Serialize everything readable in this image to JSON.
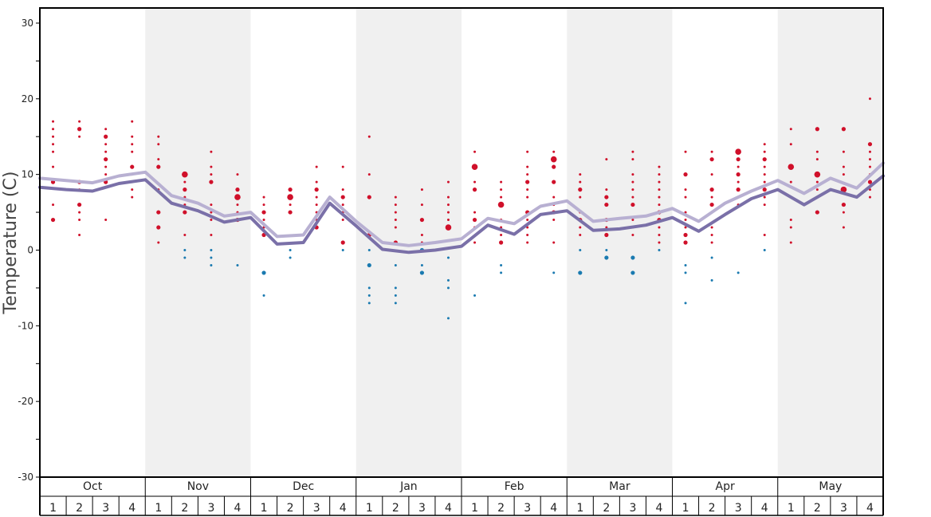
{
  "chart_data": {
    "type": "scatter",
    "ylabel": "Temperature (C)",
    "ylim": [
      -30,
      32
    ],
    "yticks": [
      -30,
      -20,
      -10,
      0,
      10,
      20,
      30
    ],
    "months": [
      "Oct",
      "Nov",
      "Dec",
      "Jan",
      "Feb",
      "Mar",
      "Apr",
      "May"
    ],
    "weeks": [
      "1",
      "2",
      "3",
      "4"
    ],
    "colors": {
      "warm_points": "#d0102a",
      "cold_points": "#1a7ab0",
      "line_upper": "#b8b0d2",
      "line_lower": "#7a70a8",
      "alt_band": "#f0f0f0"
    },
    "series": [
      {
        "values": [
          9.5,
          9.2,
          8.9,
          9.8,
          10.3,
          7.2,
          6.2,
          4.5,
          5.0,
          1.8,
          2.0,
          7.0,
          3.8,
          1.0,
          0.6,
          1.0,
          1.5,
          4.2,
          3.5,
          5.8,
          6.5,
          3.8,
          4.2,
          4.5,
          5.5,
          3.8,
          6.2,
          7.8,
          9.2,
          7.5,
          9.5,
          8.2,
          11.5
        ]
      },
      {
        "values": [
          8.3,
          8.0,
          7.8,
          8.8,
          9.3,
          6.2,
          5.2,
          3.7,
          4.3,
          0.8,
          1.0,
          6.2,
          3.2,
          0.1,
          -0.3,
          0.0,
          0.5,
          3.3,
          2.1,
          4.7,
          5.2,
          2.6,
          2.8,
          3.3,
          4.3,
          2.5,
          4.7,
          6.8,
          8.0,
          6.0,
          8.0,
          7.0,
          9.8
        ]
      }
    ],
    "points": [
      [
        0,
        17,
        1
      ],
      [
        0,
        16,
        1
      ],
      [
        0,
        15,
        1
      ],
      [
        0,
        14,
        1
      ],
      [
        0,
        13,
        1
      ],
      [
        0,
        11,
        1
      ],
      [
        0,
        9,
        2
      ],
      [
        0,
        6,
        1
      ],
      [
        0,
        4,
        2
      ],
      [
        1,
        17,
        1
      ],
      [
        1,
        16,
        2
      ],
      [
        1,
        15,
        1
      ],
      [
        1,
        9,
        2
      ],
      [
        1,
        8,
        1
      ],
      [
        1,
        6,
        2
      ],
      [
        1,
        5,
        1
      ],
      [
        1,
        4,
        1
      ],
      [
        1,
        2,
        1
      ],
      [
        2,
        16,
        1
      ],
      [
        2,
        15,
        2
      ],
      [
        2,
        14,
        1
      ],
      [
        2,
        13,
        1
      ],
      [
        2,
        12,
        2
      ],
      [
        2,
        11,
        1
      ],
      [
        2,
        10,
        1
      ],
      [
        2,
        9,
        2
      ],
      [
        2,
        4,
        1
      ],
      [
        3,
        17,
        1
      ],
      [
        3,
        15,
        1
      ],
      [
        3,
        14,
        1
      ],
      [
        3,
        13,
        1
      ],
      [
        3,
        11,
        2
      ],
      [
        3,
        10,
        1
      ],
      [
        3,
        9,
        1
      ],
      [
        3,
        8,
        1
      ],
      [
        3,
        7,
        1
      ],
      [
        4,
        15,
        1
      ],
      [
        4,
        14,
        1
      ],
      [
        4,
        12,
        1
      ],
      [
        4,
        11,
        2
      ],
      [
        4,
        8,
        1
      ],
      [
        4,
        5,
        2
      ],
      [
        4,
        3,
        2
      ],
      [
        4,
        1,
        1
      ],
      [
        5,
        10,
        3
      ],
      [
        5,
        9,
        1
      ],
      [
        5,
        8,
        2
      ],
      [
        5,
        7,
        1
      ],
      [
        5,
        6,
        1
      ],
      [
        5,
        5,
        2
      ],
      [
        5,
        2,
        1
      ],
      [
        5,
        0,
        1
      ],
      [
        5,
        -1,
        1
      ],
      [
        6,
        13,
        1
      ],
      [
        6,
        11,
        1
      ],
      [
        6,
        10,
        1
      ],
      [
        6,
        9,
        2
      ],
      [
        6,
        6,
        1
      ],
      [
        6,
        5,
        1
      ],
      [
        6,
        4,
        1
      ],
      [
        6,
        2,
        1
      ],
      [
        6,
        0,
        1
      ],
      [
        6,
        -1,
        1
      ],
      [
        6,
        -2,
        1
      ],
      [
        7,
        10,
        1
      ],
      [
        7,
        8,
        2
      ],
      [
        7,
        7,
        3
      ],
      [
        7,
        6,
        1
      ],
      [
        7,
        5,
        1
      ],
      [
        7,
        4,
        2
      ],
      [
        7,
        -2,
        1
      ],
      [
        8,
        7,
        1
      ],
      [
        8,
        6,
        1
      ],
      [
        8,
        5,
        2
      ],
      [
        8,
        4,
        1
      ],
      [
        8,
        3,
        1
      ],
      [
        8,
        2,
        2
      ],
      [
        8,
        -3,
        2
      ],
      [
        8,
        -6,
        1
      ],
      [
        9,
        8,
        2
      ],
      [
        9,
        7,
        3
      ],
      [
        9,
        6,
        1
      ],
      [
        9,
        5,
        2
      ],
      [
        9,
        0,
        1
      ],
      [
        9,
        -1,
        1
      ],
      [
        10,
        11,
        1
      ],
      [
        10,
        9,
        1
      ],
      [
        10,
        8,
        2
      ],
      [
        10,
        7,
        1
      ],
      [
        10,
        6,
        1
      ],
      [
        10,
        5,
        1
      ],
      [
        10,
        4,
        1
      ],
      [
        10,
        3,
        2
      ],
      [
        11,
        11,
        1
      ],
      [
        11,
        8,
        1
      ],
      [
        11,
        7,
        2
      ],
      [
        11,
        6,
        1
      ],
      [
        11,
        5,
        1
      ],
      [
        11,
        4,
        1
      ],
      [
        11,
        1,
        2
      ],
      [
        11,
        0,
        1
      ],
      [
        12,
        15,
        1
      ],
      [
        12,
        10,
        1
      ],
      [
        12,
        7,
        2
      ],
      [
        12,
        2,
        2
      ],
      [
        12,
        0,
        1
      ],
      [
        12,
        -2,
        2
      ],
      [
        12,
        -5,
        1
      ],
      [
        12,
        -6,
        1
      ],
      [
        12,
        -7,
        1
      ],
      [
        13,
        7,
        1
      ],
      [
        13,
        6,
        1
      ],
      [
        13,
        5,
        1
      ],
      [
        13,
        4,
        1
      ],
      [
        13,
        3,
        1
      ],
      [
        13,
        1,
        2
      ],
      [
        13,
        -2,
        1
      ],
      [
        13,
        -5,
        1
      ],
      [
        13,
        -6,
        1
      ],
      [
        13,
        -7,
        1
      ],
      [
        14,
        8,
        1
      ],
      [
        14,
        6,
        1
      ],
      [
        14,
        4,
        2
      ],
      [
        14,
        2,
        1
      ],
      [
        14,
        1,
        1
      ],
      [
        14,
        0,
        2
      ],
      [
        14,
        -2,
        1
      ],
      [
        14,
        -3,
        2
      ],
      [
        15,
        9,
        1
      ],
      [
        15,
        7,
        1
      ],
      [
        15,
        6,
        1
      ],
      [
        15,
        5,
        1
      ],
      [
        15,
        4,
        1
      ],
      [
        15,
        3,
        3
      ],
      [
        15,
        -1,
        1
      ],
      [
        15,
        -4,
        1
      ],
      [
        15,
        -5,
        1
      ],
      [
        15,
        -9,
        1
      ],
      [
        16,
        13,
        1
      ],
      [
        16,
        11,
        3
      ],
      [
        16,
        9,
        1
      ],
      [
        16,
        8,
        2
      ],
      [
        16,
        5,
        1
      ],
      [
        16,
        4,
        2
      ],
      [
        16,
        3,
        1
      ],
      [
        16,
        1,
        1
      ],
      [
        16,
        -6,
        1
      ],
      [
        17,
        9,
        1
      ],
      [
        17,
        8,
        1
      ],
      [
        17,
        7,
        1
      ],
      [
        17,
        6,
        3
      ],
      [
        17,
        4,
        1
      ],
      [
        17,
        3,
        1
      ],
      [
        17,
        2,
        1
      ],
      [
        17,
        1,
        2
      ],
      [
        17,
        -2,
        1
      ],
      [
        17,
        -3,
        1
      ],
      [
        18,
        13,
        1
      ],
      [
        18,
        11,
        1
      ],
      [
        18,
        10,
        1
      ],
      [
        18,
        9,
        2
      ],
      [
        18,
        8,
        1
      ],
      [
        18,
        7,
        1
      ],
      [
        18,
        5,
        2
      ],
      [
        18,
        4,
        1
      ],
      [
        18,
        3,
        1
      ],
      [
        18,
        2,
        1
      ],
      [
        18,
        1,
        1
      ],
      [
        19,
        13,
        1
      ],
      [
        19,
        12,
        3
      ],
      [
        19,
        11,
        2
      ],
      [
        19,
        9,
        2
      ],
      [
        19,
        7,
        1
      ],
      [
        19,
        6,
        1
      ],
      [
        19,
        5,
        2
      ],
      [
        19,
        4,
        1
      ],
      [
        19,
        1,
        1
      ],
      [
        19,
        -3,
        1
      ],
      [
        20,
        10,
        1
      ],
      [
        20,
        9,
        1
      ],
      [
        20,
        8,
        2
      ],
      [
        20,
        7,
        1
      ],
      [
        20,
        5,
        1
      ],
      [
        20,
        4,
        2
      ],
      [
        20,
        3,
        1
      ],
      [
        20,
        2,
        1
      ],
      [
        20,
        0,
        1
      ],
      [
        20,
        -3,
        2
      ],
      [
        21,
        12,
        1
      ],
      [
        21,
        8,
        1
      ],
      [
        21,
        7,
        2
      ],
      [
        21,
        6,
        2
      ],
      [
        21,
        4,
        2
      ],
      [
        21,
        3,
        1
      ],
      [
        21,
        2,
        2
      ],
      [
        21,
        0,
        1
      ],
      [
        21,
        -1,
        2
      ],
      [
        22,
        13,
        1
      ],
      [
        22,
        12,
        1
      ],
      [
        22,
        10,
        1
      ],
      [
        22,
        9,
        1
      ],
      [
        22,
        8,
        1
      ],
      [
        22,
        7,
        1
      ],
      [
        22,
        6,
        2
      ],
      [
        22,
        4,
        1
      ],
      [
        22,
        3,
        1
      ],
      [
        22,
        2,
        1
      ],
      [
        22,
        -1,
        2
      ],
      [
        22,
        -3,
        2
      ],
      [
        23,
        11,
        1
      ],
      [
        23,
        10,
        1
      ],
      [
        23,
        9,
        1
      ],
      [
        23,
        8,
        1
      ],
      [
        23,
        7,
        1
      ],
      [
        23,
        6,
        1
      ],
      [
        23,
        5,
        2
      ],
      [
        23,
        4,
        2
      ],
      [
        23,
        3,
        1
      ],
      [
        23,
        2,
        1
      ],
      [
        23,
        1,
        1
      ],
      [
        23,
        0,
        1
      ],
      [
        24,
        13,
        1
      ],
      [
        24,
        10,
        2
      ],
      [
        24,
        8,
        1
      ],
      [
        24,
        7,
        1
      ],
      [
        24,
        5,
        1
      ],
      [
        24,
        4,
        1
      ],
      [
        24,
        3,
        1
      ],
      [
        24,
        2,
        2
      ],
      [
        24,
        1,
        2
      ],
      [
        24,
        -2,
        1
      ],
      [
        24,
        -3,
        1
      ],
      [
        24,
        -7,
        1
      ],
      [
        25,
        13,
        1
      ],
      [
        25,
        12,
        2
      ],
      [
        25,
        10,
        1
      ],
      [
        25,
        8,
        2
      ],
      [
        25,
        7,
        1
      ],
      [
        25,
        6,
        2
      ],
      [
        25,
        5,
        1
      ],
      [
        25,
        3,
        1
      ],
      [
        25,
        2,
        1
      ],
      [
        25,
        1,
        1
      ],
      [
        25,
        -1,
        1
      ],
      [
        25,
        -4,
        1
      ],
      [
        26,
        13,
        3
      ],
      [
        26,
        12,
        2
      ],
      [
        26,
        11,
        1
      ],
      [
        26,
        10,
        2
      ],
      [
        26,
        9,
        1
      ],
      [
        26,
        8,
        2
      ],
      [
        26,
        7,
        1
      ],
      [
        26,
        6,
        1
      ],
      [
        26,
        -3,
        1
      ],
      [
        27,
        14,
        1
      ],
      [
        27,
        13,
        1
      ],
      [
        27,
        12,
        2
      ],
      [
        27,
        11,
        1
      ],
      [
        27,
        10,
        1
      ],
      [
        27,
        9,
        1
      ],
      [
        27,
        8,
        2
      ],
      [
        27,
        7,
        1
      ],
      [
        27,
        6,
        1
      ],
      [
        27,
        2,
        1
      ],
      [
        27,
        0,
        1
      ],
      [
        28,
        16,
        1
      ],
      [
        28,
        14,
        1
      ],
      [
        28,
        11,
        3
      ],
      [
        28,
        9,
        1
      ],
      [
        28,
        4,
        1
      ],
      [
        28,
        3,
        1
      ],
      [
        28,
        1,
        1
      ],
      [
        29,
        16,
        2
      ],
      [
        29,
        13,
        1
      ],
      [
        29,
        12,
        1
      ],
      [
        29,
        10,
        3
      ],
      [
        29,
        9,
        1
      ],
      [
        29,
        8,
        1
      ],
      [
        29,
        5,
        2
      ],
      [
        30,
        16,
        2
      ],
      [
        30,
        13,
        1
      ],
      [
        30,
        11,
        1
      ],
      [
        30,
        10,
        1
      ],
      [
        30,
        8,
        3
      ],
      [
        30,
        6,
        2
      ],
      [
        30,
        5,
        1
      ],
      [
        30,
        3,
        1
      ],
      [
        31,
        20,
        1
      ],
      [
        31,
        14,
        2
      ],
      [
        31,
        13,
        1
      ],
      [
        31,
        12,
        1
      ],
      [
        31,
        11,
        1
      ],
      [
        31,
        10,
        1
      ],
      [
        31,
        9,
        2
      ],
      [
        31,
        8,
        1
      ],
      [
        31,
        7,
        1
      ]
    ]
  }
}
